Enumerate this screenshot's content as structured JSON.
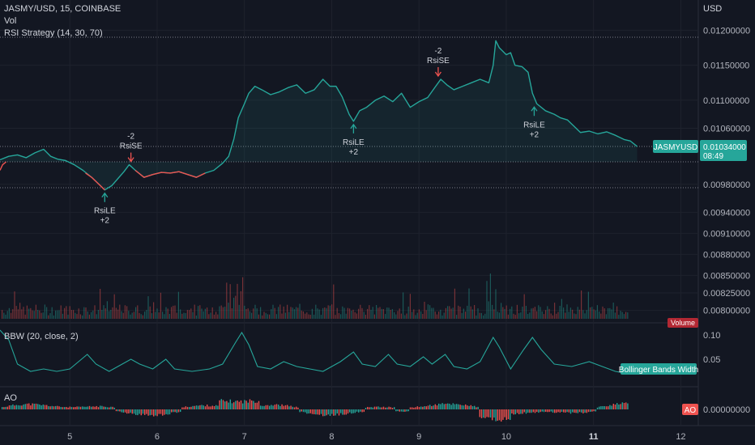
{
  "header": {
    "symbol": "JASMY/USD, 15, COINBASE",
    "vol_label": "Vol",
    "strategy_label": "RSI Strategy (14, 30, 70)"
  },
  "currency": "USD",
  "colors": {
    "background": "#131722",
    "up": "#26a69a",
    "down": "#ef5350",
    "grid": "#1e222d",
    "text": "#b2b5be"
  },
  "chart_data": [
    {
      "type": "line",
      "name": "price",
      "x_ticks": [
        "5",
        "6",
        "7",
        "8",
        "9",
        "10",
        "11",
        "12"
      ],
      "x_tick_positions": [
        5,
        6,
        7,
        8,
        9,
        10,
        11,
        12
      ],
      "y_ticks": [
        "0.01200000",
        "0.01150000",
        "0.01100000",
        "0.01060000",
        "0.00980000",
        "0.00940000",
        "0.00910000",
        "0.00880000",
        "0.00850000",
        "0.00825000",
        "0.00800000"
      ],
      "y_tick_values": [
        0.012,
        0.0115,
        0.011,
        0.0106,
        0.0098,
        0.0094,
        0.0091,
        0.0088,
        0.0085,
        0.00825,
        0.008
      ],
      "xlim": [
        4.2,
        12.2
      ],
      "ylim": [
        0.00788,
        0.01227
      ],
      "last_price_label": "JASMYUSD",
      "last_price_value": "0.01034000",
      "last_price_time": "08:49",
      "series": [
        {
          "color": "#26a69a",
          "points": [
            [
              4.2,
              0.01015
            ],
            [
              4.3,
              0.0102
            ],
            [
              4.4,
              0.01022
            ],
            [
              4.5,
              0.01018
            ],
            [
              4.6,
              0.01025
            ],
            [
              4.7,
              0.0103
            ],
            [
              4.78,
              0.0102
            ],
            [
              4.86,
              0.01016
            ],
            [
              4.95,
              0.01014
            ],
            [
              5.05,
              0.01008
            ],
            [
              5.15,
              0.01
            ],
            [
              5.25,
              0.0099
            ],
            [
              5.35,
              0.00978
            ],
            [
              5.4,
              0.00972
            ],
            [
              5.48,
              0.00978
            ],
            [
              5.55,
              0.00988
            ],
            [
              5.62,
              0.00998
            ],
            [
              5.68,
              0.01008
            ],
            [
              5.75,
              0.01
            ],
            [
              5.85,
              0.0099
            ],
            [
              5.95,
              0.00994
            ],
            [
              6.05,
              0.00997
            ],
            [
              6.15,
              0.00996
            ],
            [
              6.25,
              0.00998
            ],
            [
              6.35,
              0.00994
            ],
            [
              6.45,
              0.0099
            ],
            [
              6.55,
              0.00996
            ],
            [
              6.65,
              0.01
            ],
            [
              6.75,
              0.0101
            ],
            [
              6.82,
              0.0102
            ],
            [
              6.88,
              0.01045
            ],
            [
              6.93,
              0.01075
            ],
            [
              7.0,
              0.01095
            ],
            [
              7.05,
              0.0111
            ],
            [
              7.12,
              0.0112
            ],
            [
              7.2,
              0.01115
            ],
            [
              7.3,
              0.01108
            ],
            [
              7.4,
              0.01112
            ],
            [
              7.5,
              0.01118
            ],
            [
              7.6,
              0.01122
            ],
            [
              7.7,
              0.0111
            ],
            [
              7.8,
              0.01115
            ],
            [
              7.9,
              0.0113
            ],
            [
              7.98,
              0.0112
            ],
            [
              8.05,
              0.0112
            ],
            [
              8.12,
              0.01105
            ],
            [
              8.2,
              0.0108
            ],
            [
              8.25,
              0.0107
            ],
            [
              8.32,
              0.01085
            ],
            [
              8.4,
              0.0109
            ],
            [
              8.5,
              0.011
            ],
            [
              8.6,
              0.01106
            ],
            [
              8.7,
              0.01098
            ],
            [
              8.8,
              0.0111
            ],
            [
              8.9,
              0.0109
            ],
            [
              9.0,
              0.01098
            ],
            [
              9.1,
              0.01104
            ],
            [
              9.18,
              0.01118
            ],
            [
              9.25,
              0.0113
            ],
            [
              9.32,
              0.01122
            ],
            [
              9.4,
              0.01115
            ],
            [
              9.5,
              0.0112
            ],
            [
              9.6,
              0.01125
            ],
            [
              9.7,
              0.0113
            ],
            [
              9.8,
              0.01125
            ],
            [
              9.85,
              0.0115
            ],
            [
              9.88,
              0.01185
            ],
            [
              9.92,
              0.01175
            ],
            [
              10.0,
              0.01165
            ],
            [
              10.05,
              0.01168
            ],
            [
              10.1,
              0.0115
            ],
            [
              10.18,
              0.01148
            ],
            [
              10.25,
              0.0114
            ],
            [
              10.3,
              0.0111
            ],
            [
              10.35,
              0.01095
            ],
            [
              10.45,
              0.01085
            ],
            [
              10.55,
              0.0108
            ],
            [
              10.62,
              0.01075
            ],
            [
              10.7,
              0.01072
            ],
            [
              10.8,
              0.0106
            ],
            [
              10.85,
              0.01054
            ],
            [
              10.95,
              0.01056
            ],
            [
              11.05,
              0.01052
            ],
            [
              11.15,
              0.01055
            ],
            [
              11.25,
              0.0105
            ],
            [
              11.35,
              0.01044
            ],
            [
              11.42,
              0.01042
            ],
            [
              11.5,
              0.01034
            ]
          ]
        },
        {
          "color": "#ef5350",
          "points": [
            [
              4.2,
              0.01
            ],
            [
              4.23,
              0.01008
            ],
            [
              4.27,
              0.01012
            ]
          ]
        },
        {
          "color": "#ef5350",
          "points": [
            [
              5.18,
              0.00996
            ],
            [
              5.25,
              0.0099
            ],
            [
              5.35,
              0.00978
            ],
            [
              5.4,
              0.00972
            ]
          ]
        },
        {
          "color": "#ef5350",
          "points": [
            [
              5.75,
              0.01
            ],
            [
              5.85,
              0.0099
            ],
            [
              5.95,
              0.00994
            ],
            [
              6.05,
              0.00997
            ],
            [
              6.15,
              0.00996
            ],
            [
              6.25,
              0.00998
            ],
            [
              6.35,
              0.00994
            ],
            [
              6.45,
              0.0099
            ],
            [
              6.55,
              0.00996
            ]
          ]
        }
      ],
      "annotations": [
        {
          "text": [
            "RsiLE",
            "+2"
          ],
          "x": 5.4,
          "y": 0.00972,
          "dir": "up",
          "color": "#26a69a"
        },
        {
          "text": [
            "-2",
            "RsiSE"
          ],
          "x": 5.7,
          "y": 0.01008,
          "dir": "down",
          "color": "#ef5350"
        },
        {
          "text": [
            "RsiLE",
            "+2"
          ],
          "x": 8.25,
          "y": 0.0107,
          "dir": "up",
          "color": "#26a69a"
        },
        {
          "text": [
            "-2",
            "RsiSE"
          ],
          "x": 9.22,
          "y": 0.0113,
          "dir": "down",
          "color": "#ef5350"
        },
        {
          "text": [
            "RsiLE",
            "+2"
          ],
          "x": 10.32,
          "y": 0.01095,
          "dir": "up",
          "color": "#26a69a"
        }
      ],
      "volume_label": "Volume"
    },
    {
      "type": "line",
      "name": "bbw",
      "title": "BBW (20, close, 2)",
      "y_ticks": [
        "0.10",
        "0.05"
      ],
      "y_tick_values": [
        0.1,
        0.05
      ],
      "ylim": [
        0.0,
        0.12
      ],
      "series_label": "Bollinger Bands Width",
      "color": "#26a69a",
      "points": [
        [
          4.2,
          0.11
        ],
        [
          4.3,
          0.09
        ],
        [
          4.4,
          0.04
        ],
        [
          4.55,
          0.025
        ],
        [
          4.7,
          0.03
        ],
        [
          4.85,
          0.025
        ],
        [
          5.0,
          0.03
        ],
        [
          5.1,
          0.045
        ],
        [
          5.2,
          0.06
        ],
        [
          5.3,
          0.04
        ],
        [
          5.45,
          0.025
        ],
        [
          5.55,
          0.035
        ],
        [
          5.7,
          0.05
        ],
        [
          5.8,
          0.04
        ],
        [
          5.95,
          0.03
        ],
        [
          6.1,
          0.05
        ],
        [
          6.2,
          0.03
        ],
        [
          6.4,
          0.025
        ],
        [
          6.6,
          0.03
        ],
        [
          6.75,
          0.04
        ],
        [
          6.9,
          0.085
        ],
        [
          6.97,
          0.105
        ],
        [
          7.05,
          0.08
        ],
        [
          7.15,
          0.035
        ],
        [
          7.3,
          0.03
        ],
        [
          7.45,
          0.045
        ],
        [
          7.6,
          0.035
        ],
        [
          7.75,
          0.03
        ],
        [
          7.9,
          0.025
        ],
        [
          8.1,
          0.045
        ],
        [
          8.25,
          0.065
        ],
        [
          8.35,
          0.04
        ],
        [
          8.5,
          0.035
        ],
        [
          8.65,
          0.06
        ],
        [
          8.75,
          0.04
        ],
        [
          8.9,
          0.035
        ],
        [
          9.05,
          0.055
        ],
        [
          9.15,
          0.04
        ],
        [
          9.3,
          0.06
        ],
        [
          9.4,
          0.035
        ],
        [
          9.55,
          0.03
        ],
        [
          9.7,
          0.045
        ],
        [
          9.85,
          0.095
        ],
        [
          9.92,
          0.075
        ],
        [
          10.05,
          0.03
        ],
        [
          10.2,
          0.07
        ],
        [
          10.3,
          0.095
        ],
        [
          10.4,
          0.07
        ],
        [
          10.55,
          0.04
        ],
        [
          10.75,
          0.035
        ],
        [
          10.95,
          0.045
        ],
        [
          11.1,
          0.035
        ],
        [
          11.25,
          0.025
        ],
        [
          11.4,
          0.02
        ],
        [
          11.5,
          0.03
        ]
      ]
    },
    {
      "type": "bar",
      "name": "ao",
      "title": "AO",
      "y_ticks": [
        "0.00000000"
      ],
      "series_label": "AO"
    }
  ]
}
